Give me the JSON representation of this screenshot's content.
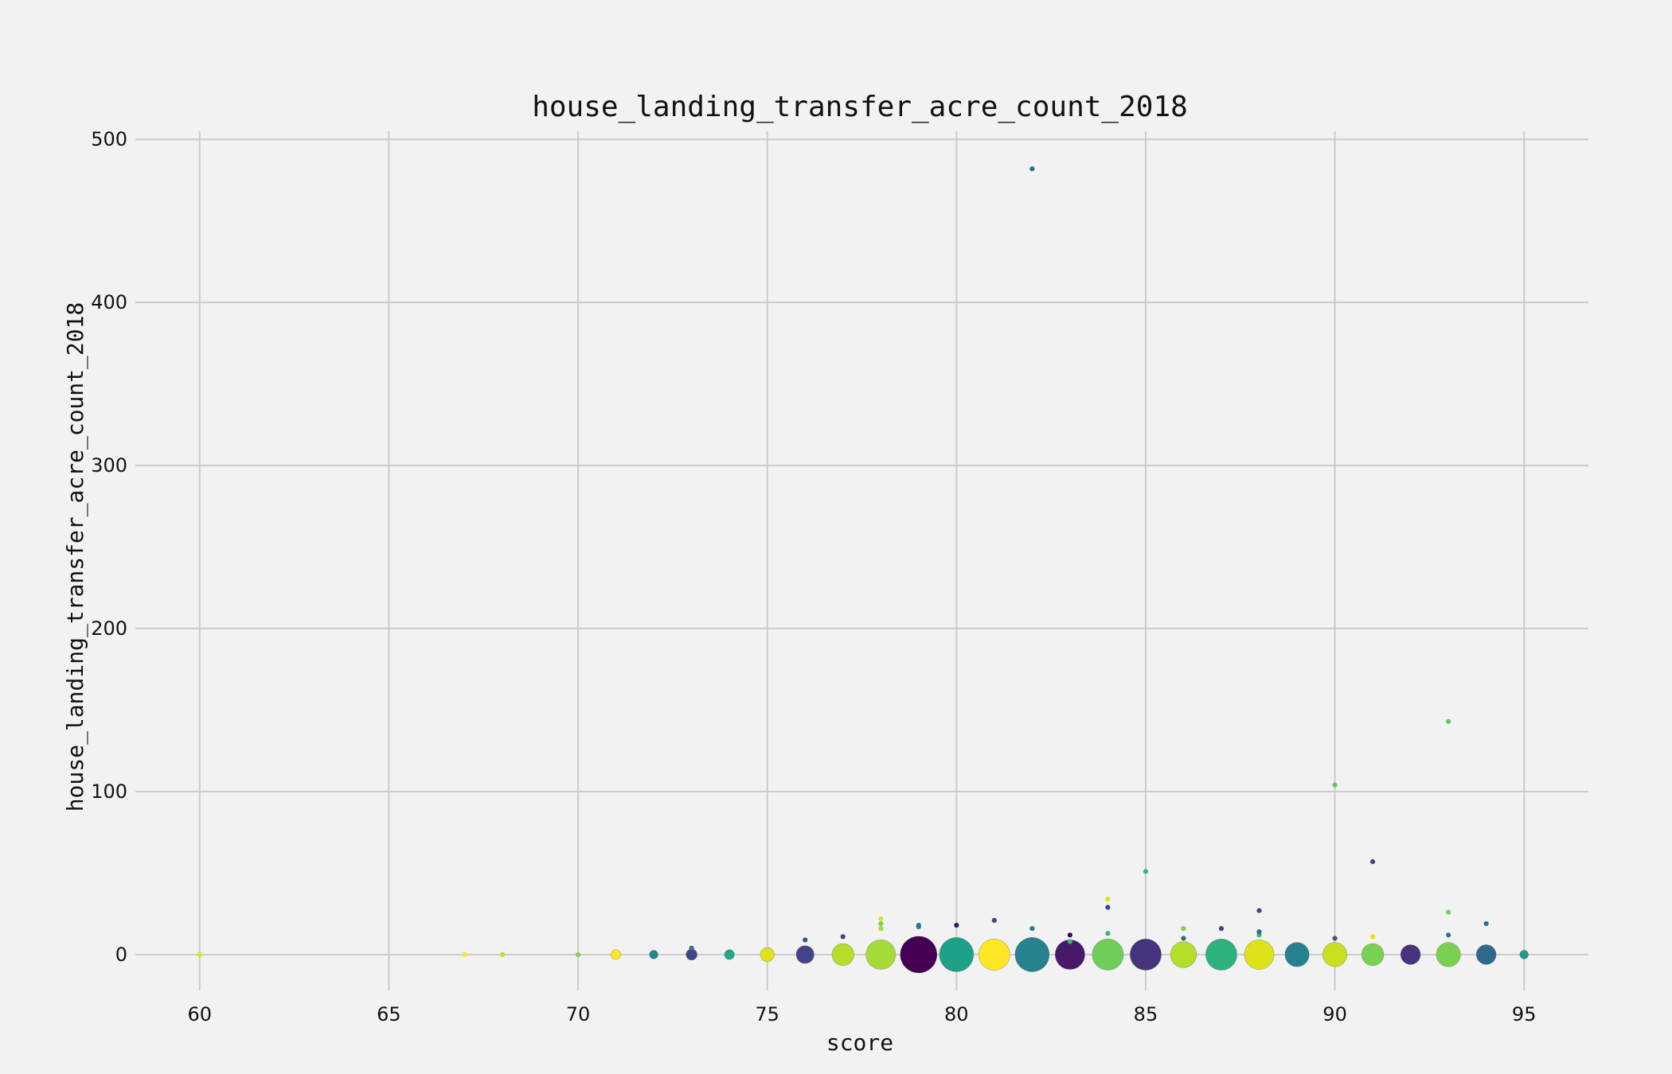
{
  "chart_data": {
    "type": "scatter",
    "title": "house_landing_transfer_acre_count_2018",
    "xlabel": "score",
    "ylabel": "house_landing_transfer_acre_count_2018",
    "xlim": [
      58.3,
      96.7
    ],
    "ylim": [
      -22,
      505
    ],
    "xticks": [
      60,
      65,
      70,
      75,
      80,
      85,
      90,
      95
    ],
    "yticks": [
      0,
      100,
      200,
      300,
      400,
      500
    ],
    "grid": true,
    "legend": "none",
    "marker_size_encodes": "count of records",
    "points": [
      {
        "x": 60,
        "y": 0,
        "size": 1,
        "color": "#dde318"
      },
      {
        "x": 67,
        "y": 0,
        "size": 1,
        "color": "#fde725"
      },
      {
        "x": 68,
        "y": 0,
        "size": 1,
        "color": "#c2df23"
      },
      {
        "x": 70,
        "y": 0,
        "size": 1,
        "color": "#7ad151"
      },
      {
        "x": 71,
        "y": 0,
        "size": 4,
        "color": "#fde725"
      },
      {
        "x": 72,
        "y": 0,
        "size": 3,
        "color": "#23898e"
      },
      {
        "x": 73,
        "y": 0,
        "size": 5,
        "color": "#414487"
      },
      {
        "x": 73,
        "y": 4,
        "size": 1,
        "color": "#2a788e"
      },
      {
        "x": 74,
        "y": 0,
        "size": 4,
        "color": "#22a884"
      },
      {
        "x": 75,
        "y": 0,
        "size": 8,
        "color": "#dde318"
      },
      {
        "x": 76,
        "y": 0,
        "size": 13,
        "color": "#414487"
      },
      {
        "x": 76,
        "y": 9,
        "size": 1,
        "color": "#3b528b"
      },
      {
        "x": 77,
        "y": 0,
        "size": 20,
        "color": "#b5de2b"
      },
      {
        "x": 77,
        "y": 11,
        "size": 1,
        "color": "#414487"
      },
      {
        "x": 78,
        "y": 0,
        "size": 36,
        "color": "#a5db36"
      },
      {
        "x": 78,
        "y": 16,
        "size": 1,
        "color": "#a5db36"
      },
      {
        "x": 78,
        "y": 19,
        "size": 1,
        "color": "#7ad151"
      },
      {
        "x": 78,
        "y": 22,
        "size": 1,
        "color": "#dde318"
      },
      {
        "x": 79,
        "y": 0,
        "size": 55,
        "color": "#440154"
      },
      {
        "x": 79,
        "y": 17,
        "size": 1,
        "color": "#21918c"
      },
      {
        "x": 79,
        "y": 18,
        "size": 1,
        "color": "#2a788e"
      },
      {
        "x": 80,
        "y": 0,
        "size": 48,
        "color": "#1fa188"
      },
      {
        "x": 80,
        "y": 18,
        "size": 1,
        "color": "#2d1e5e"
      },
      {
        "x": 81,
        "y": 0,
        "size": 40,
        "color": "#fde725"
      },
      {
        "x": 81,
        "y": 21,
        "size": 1,
        "color": "#414487"
      },
      {
        "x": 82,
        "y": 0,
        "size": 48,
        "color": "#26828e"
      },
      {
        "x": 82,
        "y": 16,
        "size": 1,
        "color": "#2a788e"
      },
      {
        "x": 82,
        "y": 482,
        "size": 1,
        "color": "#2c728e"
      },
      {
        "x": 83,
        "y": 0,
        "size": 36,
        "color": "#48186a"
      },
      {
        "x": 83,
        "y": 8,
        "size": 1,
        "color": "#35b779"
      },
      {
        "x": 83,
        "y": 12,
        "size": 1,
        "color": "#440154"
      },
      {
        "x": 84,
        "y": 0,
        "size": 40,
        "color": "#6ece58"
      },
      {
        "x": 84,
        "y": 13,
        "size": 1,
        "color": "#35b779"
      },
      {
        "x": 84,
        "y": 29,
        "size": 1,
        "color": "#414487"
      },
      {
        "x": 84,
        "y": 34,
        "size": 1,
        "color": "#dde318"
      },
      {
        "x": 85,
        "y": 0,
        "size": 40,
        "color": "#46337e"
      },
      {
        "x": 85,
        "y": 51,
        "size": 1,
        "color": "#35b779"
      },
      {
        "x": 86,
        "y": 0,
        "size": 28,
        "color": "#b5de2b"
      },
      {
        "x": 86,
        "y": 10,
        "size": 1,
        "color": "#31688e"
      },
      {
        "x": 86,
        "y": 16,
        "size": 1,
        "color": "#7ad151"
      },
      {
        "x": 87,
        "y": 0,
        "size": 40,
        "color": "#2db27d"
      },
      {
        "x": 87,
        "y": 16,
        "size": 1,
        "color": "#414487"
      },
      {
        "x": 88,
        "y": 0,
        "size": 36,
        "color": "#dde318"
      },
      {
        "x": 88,
        "y": 12,
        "size": 1,
        "color": "#35b779"
      },
      {
        "x": 88,
        "y": 14,
        "size": 1,
        "color": "#31688e"
      },
      {
        "x": 88,
        "y": 27,
        "size": 1,
        "color": "#414487"
      },
      {
        "x": 89,
        "y": 0,
        "size": 24,
        "color": "#26828e"
      },
      {
        "x": 90,
        "y": 0,
        "size": 24,
        "color": "#c8e020"
      },
      {
        "x": 90,
        "y": 10,
        "size": 1,
        "color": "#3b528b"
      },
      {
        "x": 90,
        "y": 104,
        "size": 1,
        "color": "#5ec962"
      },
      {
        "x": 91,
        "y": 0,
        "size": 20,
        "color": "#7ad151"
      },
      {
        "x": 91,
        "y": 11,
        "size": 1,
        "color": "#dde318"
      },
      {
        "x": 91,
        "y": 57,
        "size": 1,
        "color": "#414487"
      },
      {
        "x": 92,
        "y": 0,
        "size": 16,
        "color": "#46337e"
      },
      {
        "x": 93,
        "y": 0,
        "size": 24,
        "color": "#7ad151"
      },
      {
        "x": 93,
        "y": 12,
        "size": 1,
        "color": "#2c728e"
      },
      {
        "x": 93,
        "y": 26,
        "size": 1,
        "color": "#7ad151"
      },
      {
        "x": 93,
        "y": 143,
        "size": 1,
        "color": "#5ec962"
      },
      {
        "x": 94,
        "y": 0,
        "size": 16,
        "color": "#31688e"
      },
      {
        "x": 94,
        "y": 19,
        "size": 1,
        "color": "#2c728e"
      },
      {
        "x": 95,
        "y": 0,
        "size": 3,
        "color": "#1f9e89"
      }
    ]
  }
}
